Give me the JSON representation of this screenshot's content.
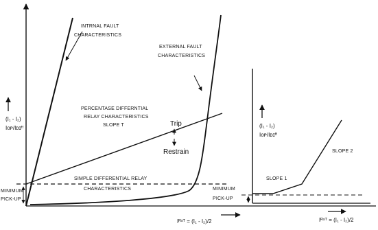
{
  "left_plot": {
    "internal_fault_l1": "INTRNAL FAULT",
    "internal_fault_l2": "CHARACTERISTICS",
    "external_fault_l1": "EXTERNAL FAULT",
    "external_fault_l2": "CHARACTERISTICS",
    "y_label_top": "(I₁ - I₂)",
    "y_label_bottom": "Iᴏᴘ/Iᴅɪᶠᶠ",
    "pct_diff_l1": "PERCENTASE  DIFFERNTIAL",
    "pct_diff_l2": "RELAY CHARACTERISTICS",
    "pct_diff_l3": "SLOPE T",
    "trip": "Trip",
    "restrain": "Restrain",
    "simple_diff_l1": "SIMPLE DIFFERENTIAL RELAY",
    "simple_diff_l2": "CHARACTERISTICS",
    "min_pickup_l1": "MINIMUM",
    "min_pickup_l2": "PICK-UP",
    "x_label": "Iᴿˢᵀ = (I₁ - I₂)/2"
  },
  "right_plot": {
    "y_label_top": "(I₁ - I₂)",
    "y_label_bottom": "Iᴏᴘ/Iᴅɪᶠᶠ",
    "slope1": "SLOPE 1",
    "slope2": "SLOPE 2",
    "min_pickup_l1": "MINIMUM",
    "min_pickup_l2": "PICK-UP",
    "x_label": "Iᴿˢᵀ = (I₁ - I₂)/2"
  }
}
